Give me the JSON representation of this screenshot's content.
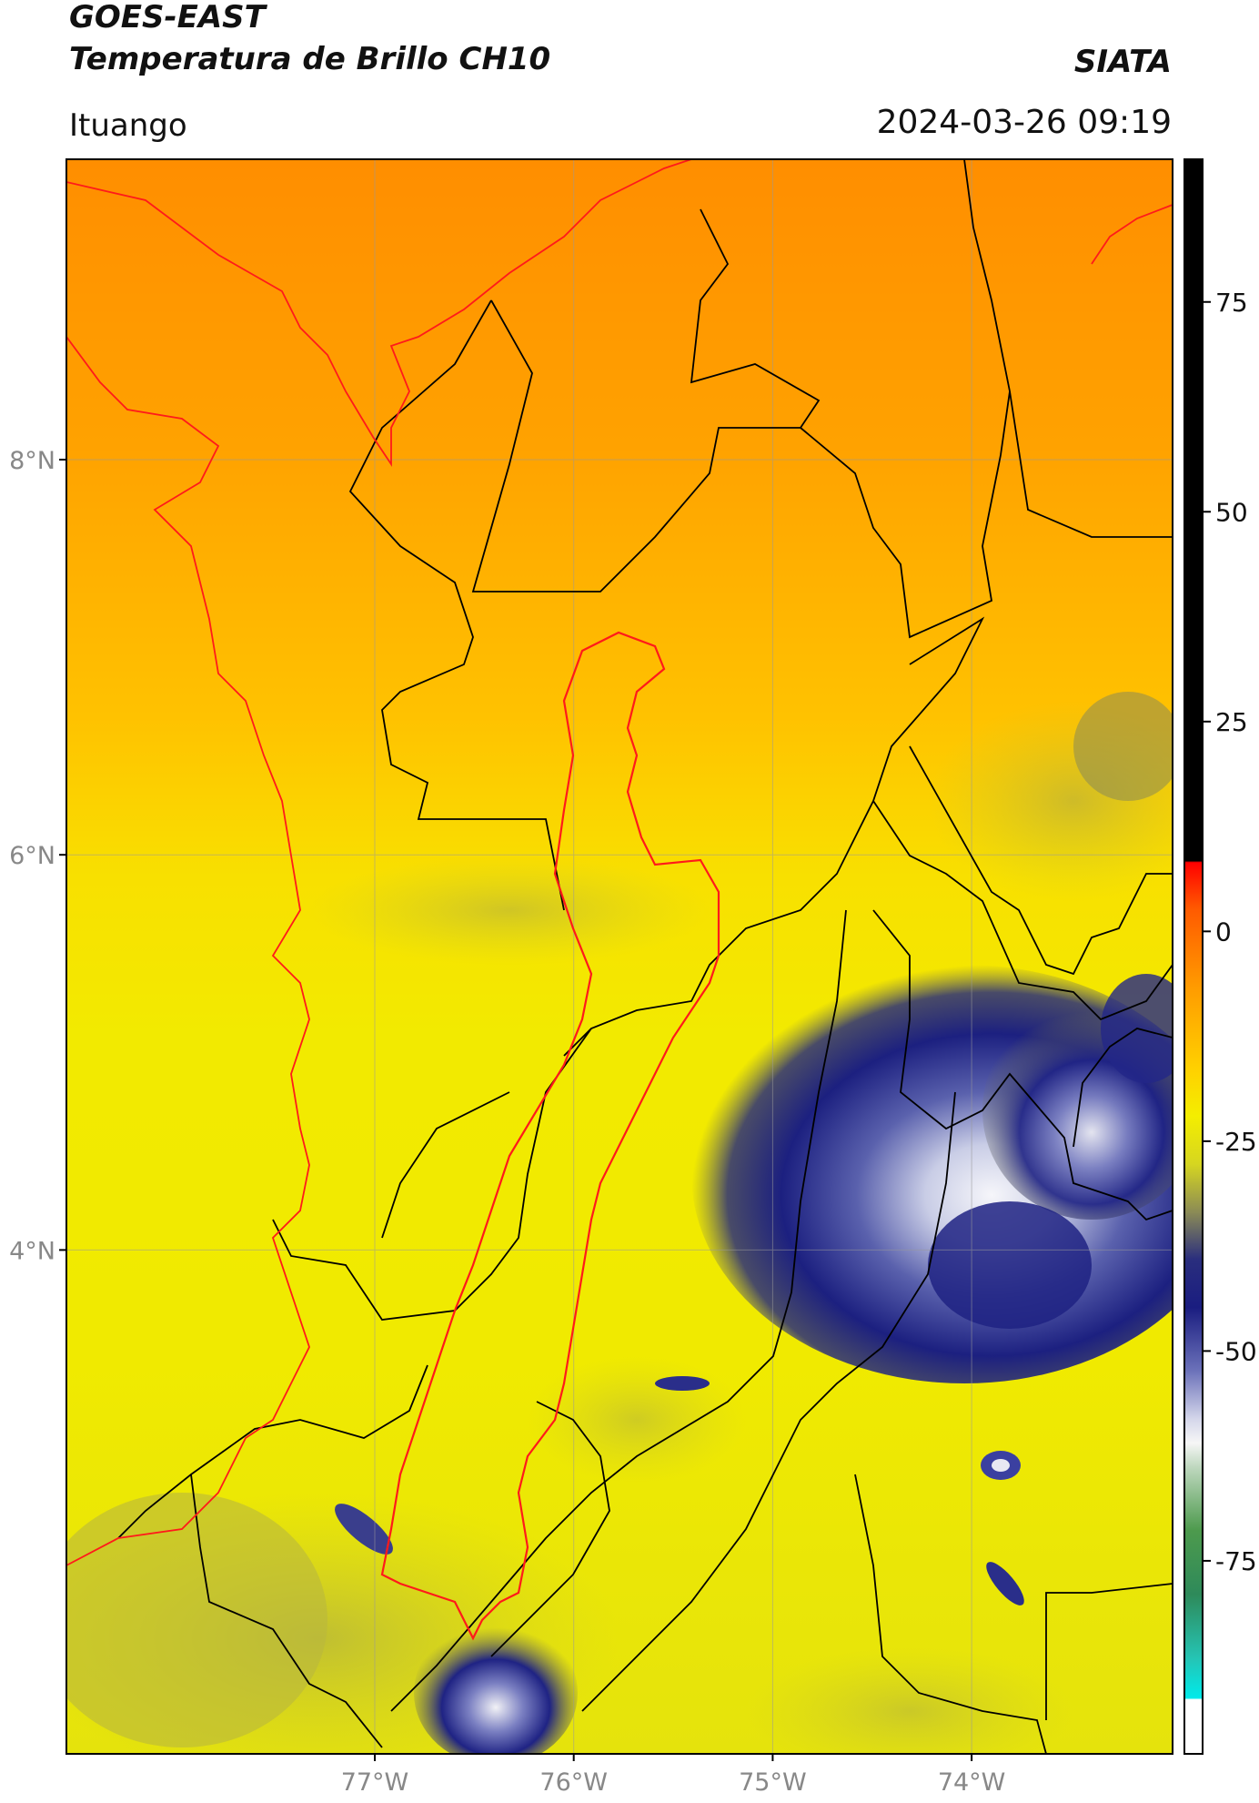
{
  "header": {
    "title_line1": "GOES-EAST",
    "title_line2": "Temperatura de Brillo CH10",
    "brand": "SIATA",
    "region": "Ituango",
    "timestamp": "2024-03-26 09:19"
  },
  "map": {
    "lat_ticks": [
      {
        "value": 8,
        "label": "8°N"
      },
      {
        "value": 6,
        "label": "6°N"
      },
      {
        "value": 4,
        "label": "4°N"
      }
    ],
    "lon_ticks": [
      {
        "value": -77,
        "label": "77°W"
      },
      {
        "value": -76,
        "label": "76°W"
      },
      {
        "value": -75,
        "label": "75°W"
      },
      {
        "value": -74,
        "label": "74°W"
      }
    ],
    "lat_range": [
      1.45,
      9.52
    ],
    "lon_range": [
      -78.55,
      -72.99
    ],
    "colors": {
      "warm": "#ff9a00",
      "yellow": "#f4ec00",
      "olive": "#c9c93a",
      "navy": "#1b1f7f",
      "white": "#f4f4f8",
      "boundary": "#000000",
      "basin": "#ff1a1a"
    }
  },
  "colorbar": {
    "min": -98,
    "max": 92,
    "ticks": [
      {
        "value": 75,
        "label": "75"
      },
      {
        "value": 50,
        "label": "50"
      },
      {
        "value": 25,
        "label": "25"
      },
      {
        "value": 0,
        "label": "0"
      },
      {
        "value": -25,
        "label": "-25"
      },
      {
        "value": -50,
        "label": "-50"
      },
      {
        "value": -75,
        "label": "-75"
      }
    ]
  }
}
